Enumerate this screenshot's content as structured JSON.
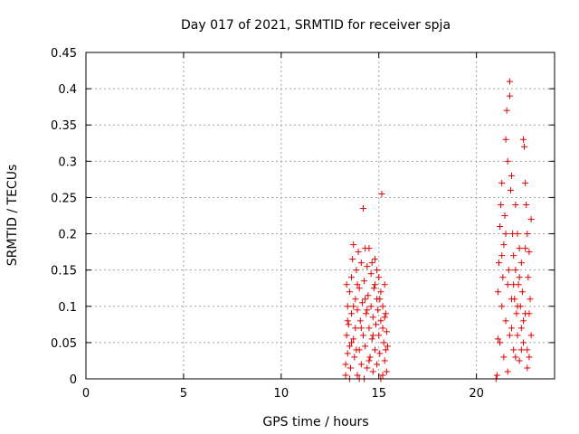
{
  "chart_data": {
    "type": "scatter",
    "title": "Day 017 of 2021, SRMTID for receiver spja",
    "xlabel": "GPS time / hours",
    "ylabel": "SRMTID / TECUs",
    "xlim": [
      0,
      24
    ],
    "ylim": [
      0,
      0.45
    ],
    "xticks": [
      0,
      5,
      10,
      15,
      20
    ],
    "xtick_labels": [
      "0",
      "5",
      "10",
      "15",
      "20"
    ],
    "yticks": [
      0,
      0.05,
      0.1,
      0.15,
      0.2,
      0.25,
      0.3,
      0.35,
      0.4,
      0.45
    ],
    "ytick_labels": [
      "0",
      "0.05",
      "0.1",
      "0.15",
      "0.2",
      "0.25",
      "0.3",
      "0.35",
      "0.4",
      "0.45"
    ],
    "grid": true,
    "marker": "+",
    "color": "#e00000",
    "series": [
      {
        "points": [
          [
            13.3,
            0.005
          ],
          [
            13.3,
            0.02
          ],
          [
            13.35,
            0.06
          ],
          [
            13.4,
            0.1
          ],
          [
            13.4,
            0.035
          ],
          [
            13.45,
            0.075
          ],
          [
            13.5,
            0.12
          ],
          [
            13.5,
            0.045
          ],
          [
            13.55,
            0.015
          ],
          [
            13.6,
            0.09
          ],
          [
            13.6,
            0.14
          ],
          [
            13.65,
            0.165
          ],
          [
            13.7,
            0.185
          ],
          [
            13.7,
            0.055
          ],
          [
            13.75,
            0.03
          ],
          [
            13.8,
            0.11
          ],
          [
            13.8,
            0.07
          ],
          [
            13.85,
            0.15
          ],
          [
            13.9,
            0.005
          ],
          [
            13.9,
            0.095
          ],
          [
            13.95,
            0.175
          ],
          [
            14.0,
            0.04
          ],
          [
            14.0,
            0.125
          ],
          [
            14.05,
            0.08
          ],
          [
            14.1,
            0.16
          ],
          [
            14.1,
            0.02
          ],
          [
            14.15,
            0.105
          ],
          [
            14.2,
            0.06
          ],
          [
            14.2,
            0.235
          ],
          [
            14.25,
            0.135
          ],
          [
            14.3,
            0.18
          ],
          [
            14.3,
            0.045
          ],
          [
            14.35,
            0.09
          ],
          [
            14.4,
            0.015
          ],
          [
            14.4,
            0.155
          ],
          [
            14.45,
            0.115
          ],
          [
            14.5,
            0.07
          ],
          [
            14.5,
            0.18
          ],
          [
            14.55,
            0.03
          ],
          [
            14.6,
            0.1
          ],
          [
            14.6,
            0.145
          ],
          [
            14.65,
            0.055
          ],
          [
            14.7,
            0.085
          ],
          [
            14.7,
            0.01
          ],
          [
            14.75,
            0.125
          ],
          [
            14.8,
            0.165
          ],
          [
            14.8,
            0.04
          ],
          [
            14.85,
            0.075
          ],
          [
            14.9,
            0.11
          ],
          [
            14.9,
            0.02
          ],
          [
            14.95,
            0.095
          ],
          [
            15.0,
            0.14
          ],
          [
            15.0,
            0.06
          ],
          [
            15.05,
            0.035
          ],
          [
            15.1,
            0.12
          ],
          [
            15.1,
            0.08
          ],
          [
            15.15,
            0.255
          ],
          [
            15.2,
            0.005
          ],
          [
            15.2,
            0.1
          ],
          [
            15.25,
            0.05
          ],
          [
            15.3,
            0.13
          ],
          [
            15.3,
            0.025
          ],
          [
            15.35,
            0.09
          ],
          [
            15.4,
            0.065
          ],
          [
            15.4,
            0.01
          ],
          [
            15.45,
            0.045
          ],
          [
            13.4,
            0.08
          ],
          [
            13.5,
            0.0
          ],
          [
            13.7,
            0.1
          ],
          [
            13.9,
            0.13
          ],
          [
            14.1,
            0.07
          ],
          [
            14.3,
            0.11
          ],
          [
            14.5,
            0.025
          ],
          [
            14.7,
            0.06
          ],
          [
            14.9,
            0.15
          ],
          [
            15.1,
            0.0
          ],
          [
            15.3,
            0.085
          ],
          [
            13.6,
            0.05
          ],
          [
            14.0,
            0.0
          ],
          [
            14.4,
            0.095
          ],
          [
            14.8,
            0.13
          ],
          [
            15.2,
            0.07
          ],
          [
            13.35,
            0.13
          ],
          [
            13.85,
            0.04
          ],
          [
            14.25,
            0.0
          ],
          [
            14.65,
            0.16
          ],
          [
            15.05,
            0.11
          ],
          [
            15.35,
            0.04
          ],
          [
            21.0,
            0.0
          ],
          [
            21.05,
            0.005
          ],
          [
            21.1,
            0.055
          ],
          [
            21.1,
            0.12
          ],
          [
            21.15,
            0.16
          ],
          [
            21.2,
            0.05
          ],
          [
            21.2,
            0.21
          ],
          [
            21.25,
            0.24
          ],
          [
            21.3,
            0.27
          ],
          [
            21.3,
            0.1
          ],
          [
            21.35,
            0.14
          ],
          [
            21.4,
            0.185
          ],
          [
            21.4,
            0.03
          ],
          [
            21.45,
            0.225
          ],
          [
            21.5,
            0.33
          ],
          [
            21.5,
            0.08
          ],
          [
            21.55,
            0.37
          ],
          [
            21.6,
            0.3
          ],
          [
            21.6,
            0.13
          ],
          [
            21.65,
            0.15
          ],
          [
            21.7,
            0.39
          ],
          [
            21.7,
            0.41
          ],
          [
            21.75,
            0.26
          ],
          [
            21.8,
            0.28
          ],
          [
            21.8,
            0.07
          ],
          [
            21.85,
            0.2
          ],
          [
            21.9,
            0.17
          ],
          [
            21.9,
            0.04
          ],
          [
            21.95,
            0.11
          ],
          [
            22.0,
            0.24
          ],
          [
            22.0,
            0.15
          ],
          [
            22.05,
            0.09
          ],
          [
            22.1,
            0.2
          ],
          [
            22.1,
            0.06
          ],
          [
            22.15,
            0.13
          ],
          [
            22.2,
            0.18
          ],
          [
            22.2,
            0.025
          ],
          [
            22.25,
            0.1
          ],
          [
            22.3,
            0.16
          ],
          [
            22.3,
            0.07
          ],
          [
            22.35,
            0.12
          ],
          [
            22.4,
            0.33
          ],
          [
            22.4,
            0.05
          ],
          [
            22.45,
            0.32
          ],
          [
            22.5,
            0.27
          ],
          [
            22.5,
            0.09
          ],
          [
            22.55,
            0.24
          ],
          [
            22.6,
            0.2
          ],
          [
            22.6,
            0.04
          ],
          [
            22.65,
            0.14
          ],
          [
            22.7,
            0.175
          ],
          [
            22.7,
            0.03
          ],
          [
            22.75,
            0.11
          ],
          [
            22.8,
            0.06
          ],
          [
            22.8,
            0.22
          ],
          [
            21.6,
            0.01
          ],
          [
            21.8,
            0.11
          ],
          [
            22.0,
            0.03
          ],
          [
            22.2,
            0.14
          ],
          [
            22.4,
            0.08
          ],
          [
            22.6,
            0.015
          ],
          [
            21.3,
            0.17
          ],
          [
            21.5,
            0.2
          ],
          [
            21.7,
            0.06
          ],
          [
            21.9,
            0.13
          ],
          [
            22.1,
            0.1
          ],
          [
            22.3,
            0.04
          ],
          [
            22.5,
            0.18
          ],
          [
            22.7,
            0.09
          ]
        ]
      }
    ]
  }
}
